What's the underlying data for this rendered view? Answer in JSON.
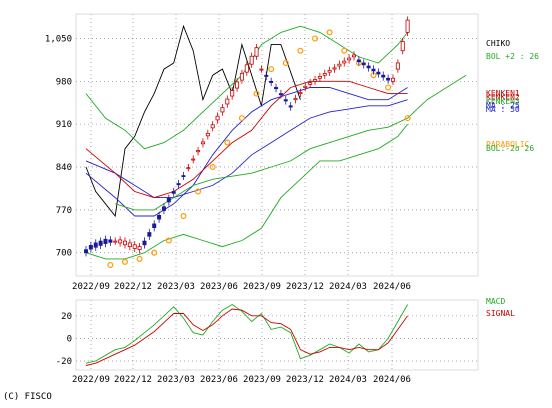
{
  "chart_data": [
    {
      "type": "candlestick",
      "title": "",
      "yticks": [
        700,
        770,
        840,
        910,
        980,
        1050
      ],
      "ytick_labels": [
        "700",
        "770",
        "840",
        "910",
        "980",
        "1,050"
      ],
      "ylim": [
        662,
        1090
      ],
      "xticks": [
        "2022/09",
        "2022/12",
        "2023/03",
        "2023/06",
        "2023/09",
        "2023/12",
        "2024/03",
        "2024/06"
      ],
      "grid": true,
      "legend": {
        "position": "right",
        "entries": [
          {
            "label": "CHIKO",
            "color": "#000000"
          },
          {
            "label": "BOL +2 : 26",
            "color": "#22aa22"
          },
          {
            "label": "KENKEN1",
            "color": "#cc0000"
          },
          {
            "label": "KENKEN2",
            "color": "#cc0000"
          },
          {
            "label": "KENKEN3",
            "color": "#22aa22"
          },
          {
            "label": "MA : 25",
            "color": "#2222cc"
          },
          {
            "label": "MA : 50",
            "color": "#2222cc"
          },
          {
            "label": "PARABOLIC",
            "color": "#ff9900"
          },
          {
            "label": "BOL:-2σ 26",
            "color": "#22aa22"
          }
        ]
      },
      "series": [
        {
          "name": "CHIKO",
          "color": "#000000",
          "x": [
            0,
            2,
            4,
            6,
            8,
            10,
            12,
            14,
            16,
            18,
            20,
            22,
            24,
            26,
            28,
            30,
            32,
            34,
            36,
            38,
            40,
            44
          ],
          "y": [
            840,
            800,
            780,
            760,
            870,
            890,
            930,
            960,
            1000,
            1010,
            1070,
            1030,
            950,
            990,
            1000,
            960,
            1040,
            990,
            940,
            1040,
            1040,
            950
          ]
        },
        {
          "name": "BOL +2 : 26",
          "color": "#22aa22",
          "x": [
            0,
            4,
            8,
            12,
            16,
            20,
            24,
            28,
            32,
            36,
            40,
            44,
            48,
            52,
            56,
            60,
            64,
            66
          ],
          "y": [
            960,
            920,
            900,
            870,
            880,
            900,
            930,
            960,
            990,
            1040,
            1060,
            1070,
            1060,
            1040,
            1020,
            1010,
            1040,
            1060
          ]
        },
        {
          "name": "BOL:-2σ 26",
          "color": "#22aa22",
          "x": [
            0,
            4,
            8,
            12,
            16,
            20,
            24,
            28,
            32,
            36,
            40,
            44,
            48,
            52,
            56,
            60,
            64,
            66
          ],
          "y": [
            700,
            690,
            690,
            700,
            720,
            730,
            720,
            710,
            720,
            740,
            790,
            820,
            850,
            850,
            860,
            870,
            890,
            910
          ]
        },
        {
          "name": "MA : 25",
          "color": "#2222cc",
          "x": [
            0,
            6,
            10,
            14,
            18,
            22,
            26,
            30,
            34,
            38,
            42,
            46,
            50,
            54,
            58,
            62,
            66
          ],
          "y": [
            830,
            790,
            760,
            760,
            780,
            810,
            860,
            900,
            930,
            950,
            960,
            970,
            970,
            960,
            950,
            950,
            970
          ]
        },
        {
          "name": "MA : 50",
          "color": "#2222cc",
          "x": [
            0,
            6,
            10,
            14,
            18,
            22,
            26,
            30,
            34,
            38,
            42,
            46,
            50,
            54,
            58,
            62,
            66
          ],
          "y": [
            850,
            830,
            810,
            790,
            790,
            800,
            810,
            830,
            860,
            880,
            900,
            920,
            930,
            935,
            940,
            940,
            950
          ]
        },
        {
          "name": "KENKEN2",
          "color": "#cc0000",
          "x": [
            0,
            6,
            10,
            14,
            18,
            22,
            26,
            30,
            34,
            38,
            42,
            46,
            50,
            54,
            58,
            62,
            66
          ],
          "y": [
            870,
            830,
            800,
            790,
            800,
            820,
            850,
            880,
            900,
            940,
            970,
            980,
            980,
            980,
            970,
            960,
            960
          ]
        },
        {
          "name": "KENKEN3",
          "color": "#22aa22",
          "x": [
            6,
            10,
            14,
            18,
            22,
            26,
            30,
            34,
            38,
            42,
            46,
            50,
            54,
            58,
            62,
            66,
            70,
            74,
            78
          ],
          "y": [
            780,
            770,
            770,
            790,
            810,
            820,
            825,
            830,
            840,
            850,
            870,
            880,
            890,
            900,
            905,
            920,
            950,
            970,
            990
          ]
        },
        {
          "name": "PARABOLIC",
          "color": "#ff9900",
          "x": [
            5,
            8,
            11,
            14,
            17,
            20,
            23,
            26,
            29,
            32,
            35,
            38,
            41,
            44,
            47,
            50,
            53,
            56,
            59,
            62,
            66
          ],
          "y": [
            680,
            685,
            690,
            700,
            720,
            760,
            800,
            840,
            880,
            920,
            960,
            1000,
            1010,
            1030,
            1050,
            1060,
            1030,
            1010,
            990,
            970,
            920
          ]
        }
      ],
      "candles": {
        "x": [
          0,
          1,
          2,
          3,
          4,
          5,
          6,
          7,
          8,
          9,
          10,
          11,
          12,
          13,
          14,
          15,
          16,
          17,
          18,
          19,
          20,
          21,
          22,
          23,
          24,
          25,
          26,
          27,
          28,
          29,
          30,
          31,
          32,
          33,
          34,
          35,
          36,
          37,
          38,
          39,
          40,
          41,
          42,
          43,
          44,
          45,
          46,
          47,
          48,
          49,
          50,
          51,
          52,
          53,
          54,
          55,
          56,
          57,
          58,
          59,
          60,
          61,
          62,
          63,
          64,
          65,
          66
        ],
        "open": [
          705,
          712,
          716,
          719,
          722,
          721,
          719,
          716,
          713,
          710,
          707,
          705,
          719,
          733,
          747,
          761,
          775,
          789,
          800,
          813,
          826,
          839,
          852,
          865,
          878,
          891,
          904,
          917,
          930,
          943,
          956,
          969,
          982,
          995,
          1008,
          1021,
          1000,
          990,
          980,
          970,
          960,
          950,
          940,
          950,
          960,
          970,
          975,
          980,
          985,
          990,
          995,
          1000,
          1005,
          1010,
          1015,
          1020,
          1015,
          1010,
          1005,
          1000,
          995,
          990,
          985,
          980,
          1000,
          1030,
          1060
        ],
        "close": [
          700,
          706,
          709,
          712,
          715,
          717,
          719,
          721,
          719,
          716,
          713,
          710,
          713,
          727,
          741,
          755,
          769,
          783,
          797,
          811,
          825,
          839,
          853,
          867,
          881,
          895,
          909,
          923,
          937,
          951,
          965,
          979,
          993,
          1007,
          1021,
          1035,
          1000,
          988,
          978,
          968,
          958,
          948,
          938,
          952,
          962,
          972,
          978,
          983,
          988,
          993,
          998,
          1002,
          1008,
          1013,
          1018,
          1023,
          1012,
          1007,
          1002,
          997,
          992,
          987,
          982,
          985,
          1010,
          1045,
          1080
        ]
      }
    },
    {
      "type": "line",
      "title": "",
      "yticks": [
        -20,
        0,
        20
      ],
      "ytick_labels": [
        "-20",
        "0",
        "20"
      ],
      "ylim": [
        -28,
        34
      ],
      "xticks": [
        "2022/09",
        "2022/12",
        "2023/03",
        "2023/06",
        "2023/09",
        "2023/12",
        "2024/03",
        "2024/06"
      ],
      "grid": true,
      "legend": {
        "position": "right",
        "entries": [
          {
            "label": "MACD",
            "color": "#22aa22"
          },
          {
            "label": "SIGNAL",
            "color": "#cc0000"
          }
        ]
      },
      "series": [
        {
          "name": "MACD",
          "color": "#22aa22",
          "x": [
            0,
            2,
            4,
            6,
            8,
            10,
            12,
            14,
            16,
            18,
            20,
            22,
            24,
            26,
            28,
            30,
            32,
            34,
            36,
            38,
            40,
            42,
            44,
            46,
            48,
            50,
            52,
            54,
            56,
            58,
            60,
            62,
            64,
            66
          ],
          "y": [
            -22,
            -20,
            -15,
            -10,
            -8,
            -2,
            5,
            12,
            20,
            28,
            18,
            5,
            3,
            15,
            25,
            30,
            24,
            15,
            22,
            8,
            10,
            5,
            -18,
            -15,
            -10,
            -5,
            -8,
            -13,
            -5,
            -12,
            -10,
            0,
            15,
            30
          ]
        },
        {
          "name": "SIGNAL",
          "color": "#cc0000",
          "x": [
            0,
            2,
            4,
            6,
            8,
            10,
            12,
            14,
            16,
            18,
            20,
            22,
            24,
            26,
            28,
            30,
            32,
            34,
            36,
            38,
            40,
            42,
            44,
            46,
            48,
            50,
            52,
            54,
            56,
            58,
            60,
            62,
            64,
            66
          ],
          "y": [
            -24,
            -22,
            -18,
            -14,
            -10,
            -6,
            0,
            6,
            14,
            22,
            22,
            12,
            7,
            12,
            20,
            26,
            25,
            20,
            20,
            14,
            13,
            8,
            -10,
            -14,
            -12,
            -8,
            -8,
            -10,
            -8,
            -10,
            -10,
            -4,
            8,
            20
          ]
        }
      ]
    }
  ],
  "copyright": "(C) FISCO"
}
